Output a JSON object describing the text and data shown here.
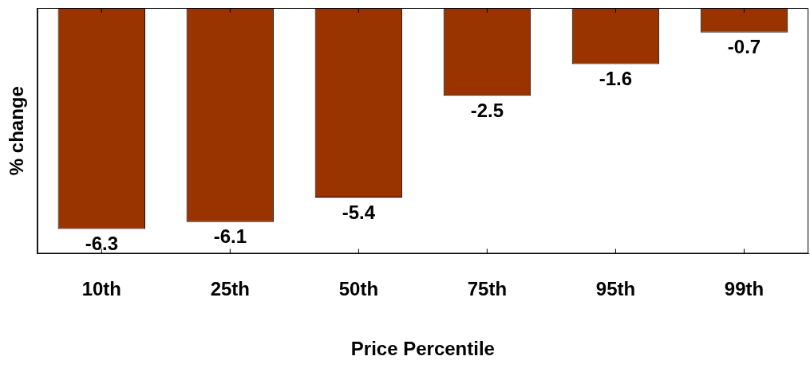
{
  "chart_data": {
    "type": "bar",
    "xlabel": "Price Percentile",
    "ylabel": "% change",
    "categories": [
      "10th",
      "25th",
      "50th",
      "75th",
      "95th",
      "99th"
    ],
    "values": [
      -6.3,
      -6.1,
      -5.4,
      -2.5,
      -1.6,
      -0.7
    ],
    "color": "#993300",
    "ylim": [
      -7,
      0
    ],
    "tick_labels": "x",
    "data_labels": true,
    "grid": false,
    "legend": false
  }
}
